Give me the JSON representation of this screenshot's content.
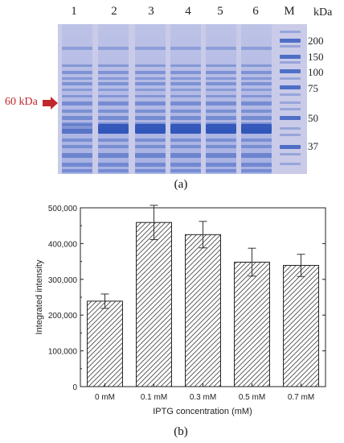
{
  "gel_panel": {
    "lane_labels": [
      "1",
      "2",
      "3",
      "4",
      "5",
      "6",
      "M"
    ],
    "unit_label": "kDa",
    "marker_labels": [
      "200",
      "150",
      "100",
      "75",
      "50",
      "37"
    ],
    "arrow_label": "60 kDa",
    "panel_label": "(a)"
  },
  "chart_panel": {
    "panel_label": "(b)"
  },
  "chart_data": {
    "type": "bar",
    "categories": [
      "0 mM",
      "0.1 mM",
      "0.3 mM",
      "0.5 mM",
      "0.7 mM"
    ],
    "values": [
      239000,
      459000,
      425000,
      348000,
      339000
    ],
    "errors": [
      20000,
      48000,
      37000,
      39000,
      31000
    ],
    "title": "",
    "xlabel": "IPTG concentration (mM)",
    "ylabel": "Integrated intensity",
    "ylim": [
      0,
      500000
    ],
    "yticks": [
      0,
      100000,
      200000,
      300000,
      400000,
      500000
    ],
    "ytick_labels": [
      "0",
      "100,000",
      "200,000",
      "300,000",
      "400,000",
      "500,000"
    ],
    "bar_fill": "hatched",
    "grid": false,
    "legend": "none"
  },
  "colors": {
    "gel_background": "#c9cbe8",
    "band_color": "#3a5fc0",
    "arrow_color": "#c0282d",
    "arrow_text_color": "#c0282d"
  }
}
